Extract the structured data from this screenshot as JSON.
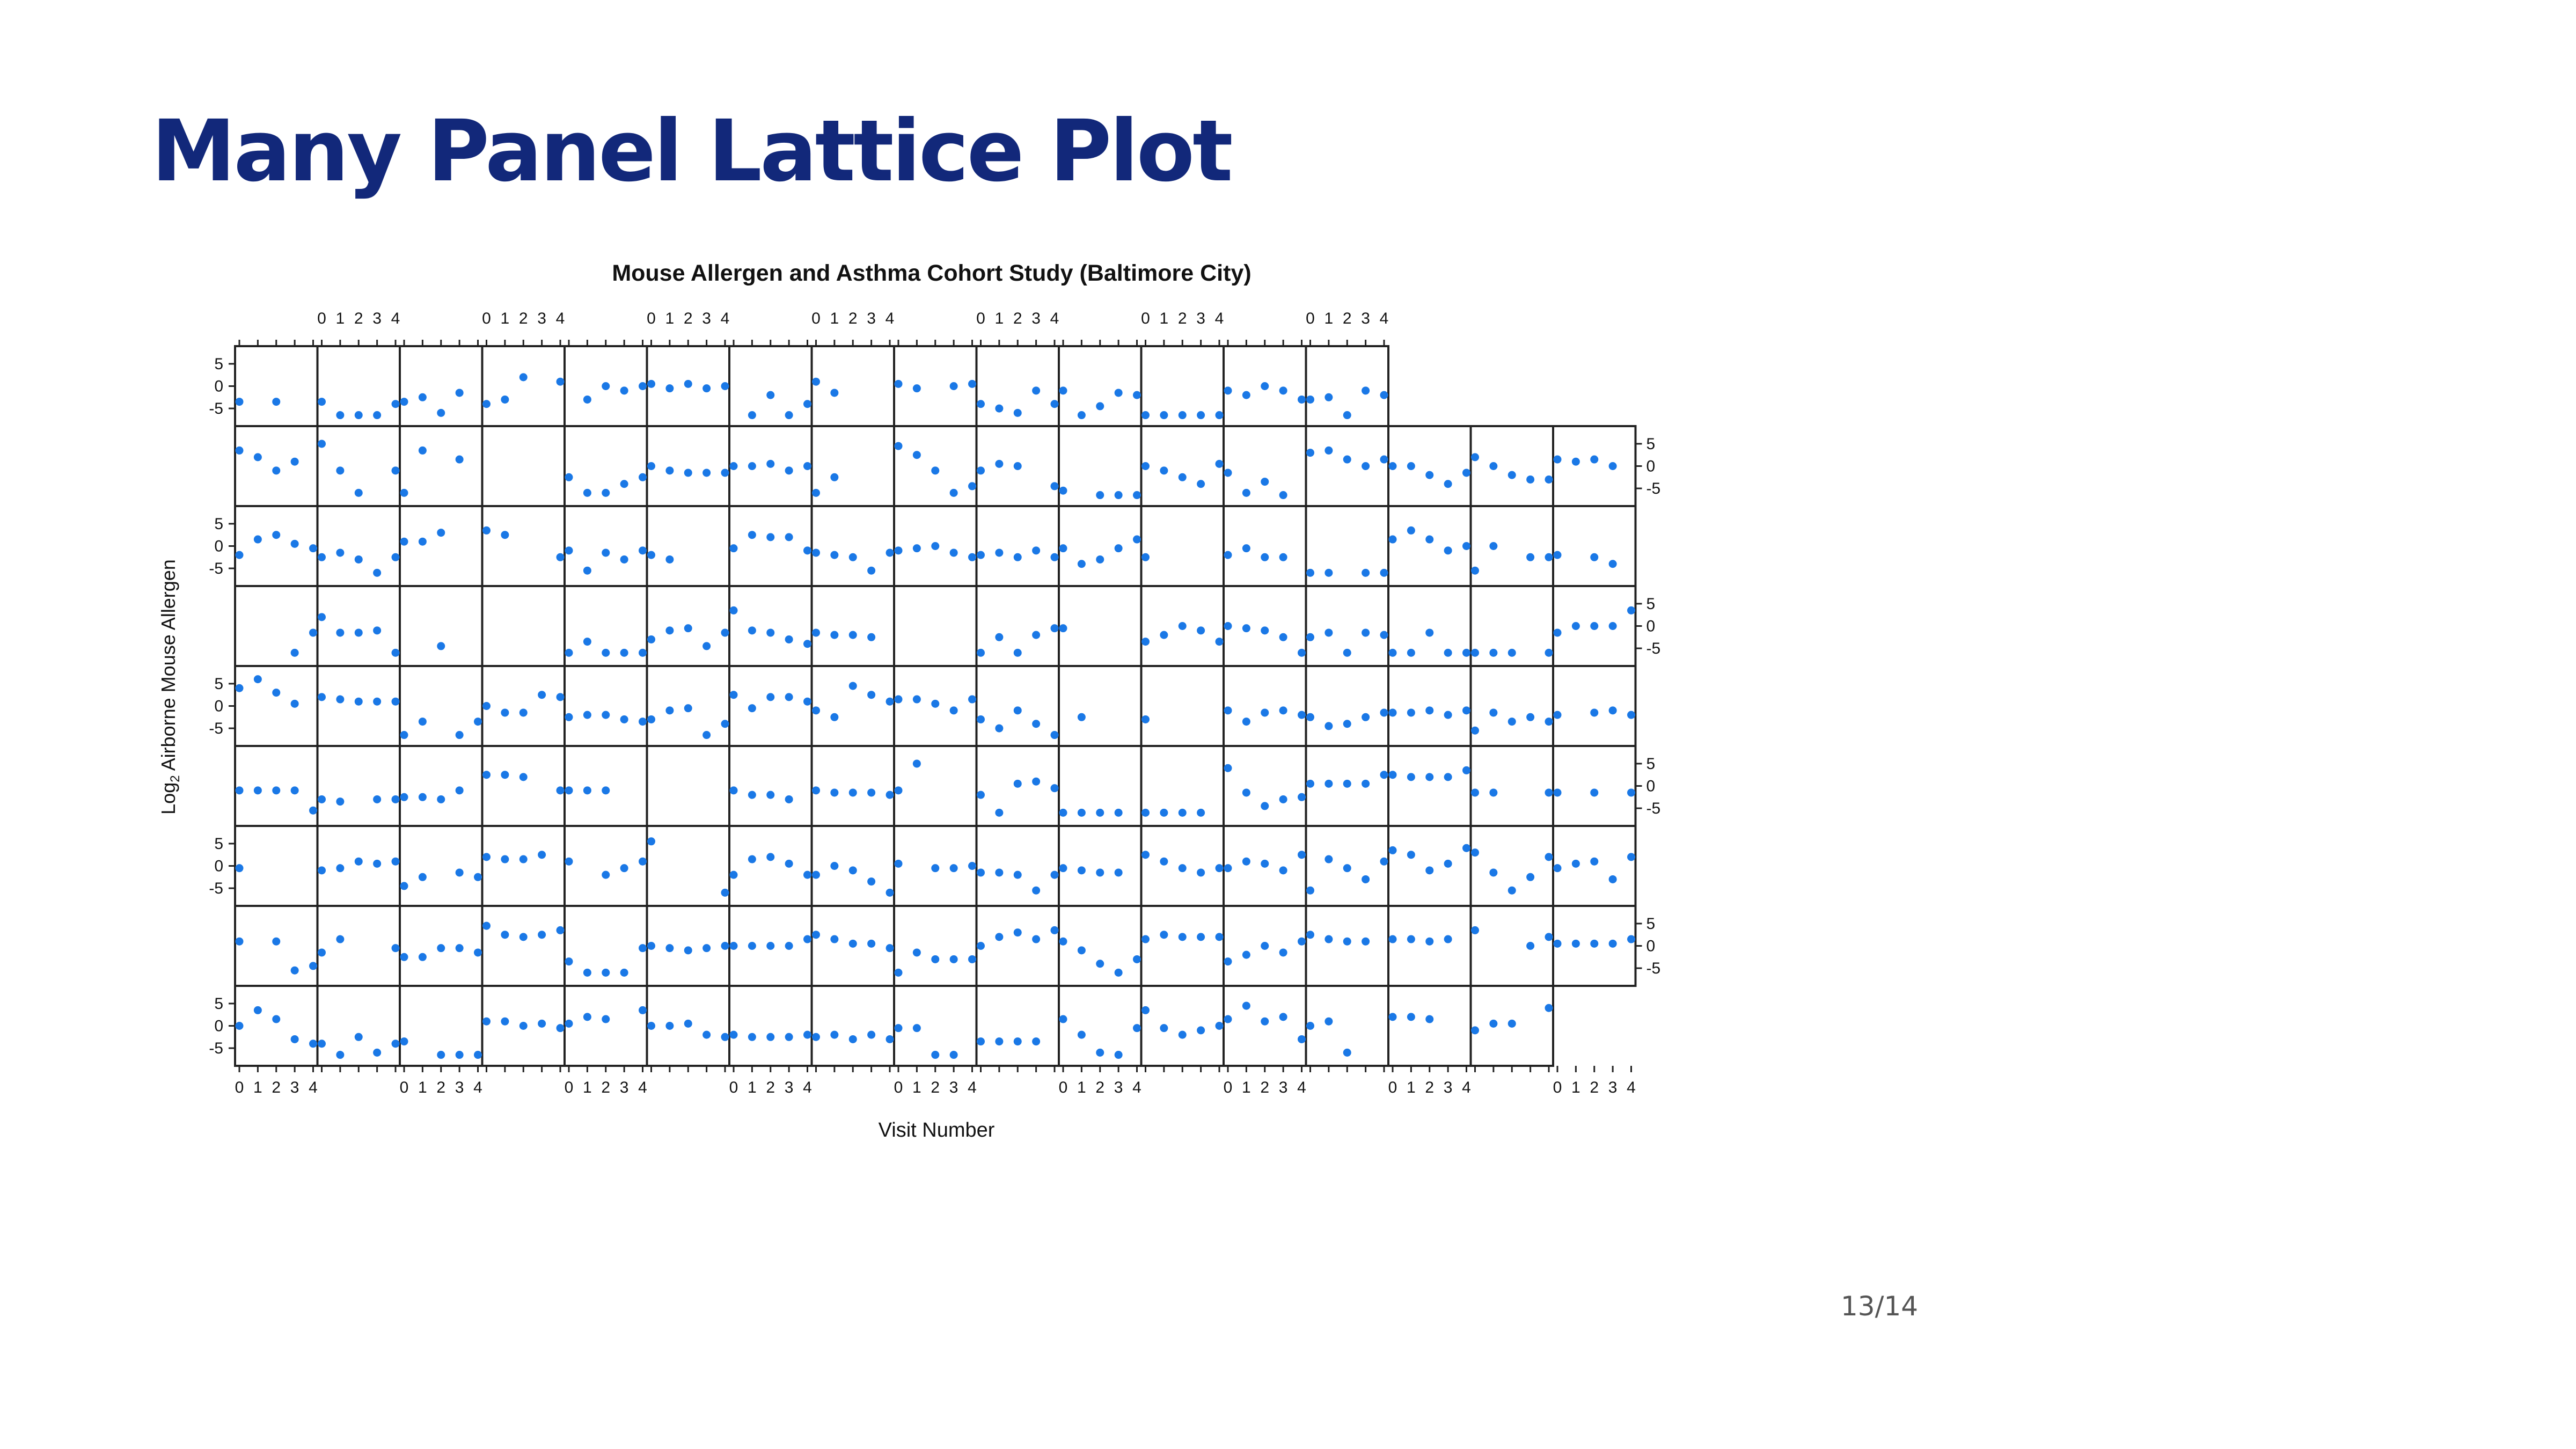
{
  "slide": {
    "title": "Many Panel Lattice Plot",
    "page_number": "13/14"
  },
  "colors": {
    "title": "#12287a",
    "points": "#1a78e6",
    "panel_border": "#222222",
    "tick_text": "#111111"
  },
  "chart_data": {
    "type": "scatter",
    "layout": "lattice",
    "title": "Mouse Allergen and Asthma Cohort Study (Baltimore City)",
    "xlabel": "Visit Number",
    "ylabel": "Log2 Airborne Mouse Allergen",
    "ylabel_parts": {
      "base": "Log",
      "sub": "2",
      "rest": " Airborne Mouse Allergen"
    },
    "x": [
      0,
      1,
      2,
      3,
      4
    ],
    "x_ticks": [
      "0",
      "1",
      "2",
      "3",
      "4"
    ],
    "y_ticks": [
      "5",
      "0",
      "-5"
    ],
    "y_tick_values": [
      5,
      0,
      -5
    ],
    "xlim": [
      0,
      4
    ],
    "ylim": [
      -8,
      8
    ],
    "grid": false,
    "panel_rows": 9,
    "panel_cols": 17,
    "panels": [
      [
        [
          -3.5,
          null,
          -3.5,
          null,
          null
        ],
        [
          -3.5,
          -6.5,
          -6.5,
          -6.5,
          -4
        ],
        [
          -3.5,
          -2.5,
          -6,
          -1.5,
          null
        ],
        [
          -4,
          -3,
          2,
          null,
          1
        ],
        [
          null,
          -3,
          0,
          -1,
          0
        ],
        [
          0.5,
          -0.5,
          0.5,
          -0.5,
          0
        ],
        [
          null,
          -6.5,
          -2,
          -6.5,
          -4
        ],
        [
          1,
          -1.5,
          null,
          null,
          null
        ],
        [
          0.5,
          -0.5,
          null,
          0,
          0.5
        ],
        [
          -4,
          -5,
          -6,
          -1,
          -4
        ],
        [
          -1,
          -6.5,
          -4.5,
          -1.5,
          -2
        ],
        [
          -6.5,
          -6.5,
          -6.5,
          -6.5,
          -6.5
        ],
        [
          -1,
          -2,
          0,
          -1,
          -3
        ],
        [
          -3,
          -2.5,
          -6.5,
          -1,
          -2
        ],
        null,
        null,
        null
      ],
      [
        [
          3.5,
          2,
          -1,
          1,
          null
        ],
        [
          5,
          -1,
          -6,
          null,
          -1
        ],
        [
          -6,
          3.5,
          null,
          1.5,
          null
        ],
        null,
        [
          -2.5,
          -6,
          -6,
          -4,
          -2.5
        ],
        [
          0,
          -1,
          -1.5,
          -1.5,
          -1.5
        ],
        [
          0,
          0,
          0.5,
          -1,
          0
        ],
        [
          -6,
          -2.5,
          null,
          null,
          null
        ],
        [
          4.5,
          2.5,
          -1,
          -6,
          -4.5
        ],
        [
          -1,
          0.5,
          0,
          null,
          -4.5
        ],
        [
          -5.5,
          null,
          -6.5,
          -6.5,
          -6.5
        ],
        [
          0,
          -1,
          -2.5,
          -4,
          0.5
        ],
        [
          -1.5,
          -6,
          -3.5,
          -6.5,
          null
        ],
        [
          3,
          3.5,
          1.5,
          0,
          1.5
        ],
        [
          0,
          0,
          -2,
          -4,
          -1.5
        ],
        [
          2,
          0,
          -2,
          -3,
          -3
        ],
        [
          1.5,
          1,
          1.5,
          0,
          null
        ]
      ],
      [
        [
          -2,
          1.5,
          2.5,
          0.5,
          -0.5
        ],
        [
          -2.5,
          -1.5,
          -3,
          -6,
          -2.5
        ],
        [
          1,
          1,
          3,
          null,
          null
        ],
        [
          3.5,
          2.5,
          null,
          null,
          -2.5
        ],
        [
          -1,
          -5.5,
          -1.5,
          -3,
          -1
        ],
        [
          -2,
          -3,
          null,
          null,
          null
        ],
        [
          -0.5,
          2.5,
          2,
          2,
          -1
        ],
        [
          -1.5,
          -2,
          -2.5,
          -5.5,
          -1.5
        ],
        [
          -1,
          -0.5,
          0,
          -1.5,
          -2.5
        ],
        [
          -2,
          -1.5,
          -2.5,
          -1,
          -2.5
        ],
        [
          -0.5,
          -4,
          -3,
          -0.5,
          1.5
        ],
        [
          -2.5,
          null,
          null,
          null,
          null
        ],
        [
          -2,
          -0.5,
          -2.5,
          -2.5,
          null
        ],
        [
          -6,
          -6,
          null,
          -6,
          -6
        ],
        [
          1.5,
          3.5,
          1.5,
          -1,
          0
        ],
        [
          -5.5,
          0,
          null,
          -2.5,
          -2.5
        ],
        [
          -2,
          null,
          -2.5,
          -4,
          null
        ]
      ],
      [
        [
          null,
          null,
          null,
          -6,
          -1.5
        ],
        [
          2,
          -1.5,
          -1.5,
          -1,
          -6
        ],
        [
          null,
          null,
          -4.5,
          null,
          null
        ],
        null,
        [
          -6,
          -3.5,
          -6,
          -6,
          -6
        ],
        [
          -3,
          -1,
          -0.5,
          -4.5,
          -1.5
        ],
        [
          3.5,
          -1,
          -1.5,
          -3,
          -4
        ],
        [
          -1.5,
          -2,
          -2,
          -2.5,
          null
        ],
        [
          null,
          null,
          null,
          null,
          null
        ],
        [
          -6,
          -2.5,
          -6,
          -2,
          -0.5
        ],
        [
          -0.5,
          null,
          null,
          null,
          null
        ],
        [
          -3.5,
          -2,
          0,
          -1,
          -3.5
        ],
        [
          0,
          -0.5,
          -1,
          -2.5,
          -6
        ],
        [
          -2.5,
          -1.5,
          -6,
          -1.5,
          -2
        ],
        [
          -6,
          -6,
          -1.5,
          -6,
          -6
        ],
        [
          -6,
          -6,
          -6,
          null,
          -6
        ],
        [
          -1.5,
          0,
          0,
          0,
          3.5
        ]
      ],
      [
        [
          4,
          6,
          3,
          0.5,
          null
        ],
        [
          2,
          1.5,
          1,
          1,
          1
        ],
        [
          -6.5,
          -3.5,
          null,
          -6.5,
          -3.5
        ],
        [
          0,
          -1.5,
          -1.5,
          2.5,
          2
        ],
        [
          -2.5,
          -2,
          -2,
          -3,
          -3.5
        ],
        [
          -3,
          -1,
          -0.5,
          -6.5,
          -4
        ],
        [
          2.5,
          -0.5,
          2,
          2,
          1
        ],
        [
          -1,
          -2.5,
          4.5,
          2.5,
          1
        ],
        [
          1.5,
          1.5,
          0.5,
          -1,
          1.5
        ],
        [
          -3,
          -5,
          -1,
          -4,
          -6.5
        ],
        [
          null,
          -2.5,
          null,
          null,
          null
        ],
        [
          -3,
          null,
          null,
          null,
          null
        ],
        [
          -1,
          -3.5,
          -1.5,
          -1,
          -2
        ],
        [
          -2.5,
          -4.5,
          -4,
          -2.5,
          -1.5
        ],
        [
          -1.5,
          -1.5,
          -1,
          -2,
          -1
        ],
        [
          -5.5,
          -1.5,
          -3.5,
          -2.5,
          -3.5
        ],
        [
          -2,
          null,
          -1.5,
          -1,
          -2
        ]
      ],
      [
        [
          -1,
          -1,
          -1,
          -1,
          -5.5
        ],
        [
          -3,
          -3.5,
          null,
          -3,
          -3
        ],
        [
          -2.5,
          -2.5,
          -3,
          -1,
          null
        ],
        [
          2.5,
          2.5,
          2,
          null,
          -1
        ],
        [
          -1,
          -1,
          -1,
          null,
          null
        ],
        null,
        [
          -1,
          -2,
          -2,
          -3,
          null
        ],
        [
          -1,
          -1.5,
          -1.5,
          -1.5,
          -2
        ],
        [
          -1,
          5,
          null,
          null,
          null
        ],
        [
          -2,
          -6,
          0.5,
          1,
          -0.5
        ],
        [
          -6,
          -6,
          -6,
          -6,
          null
        ],
        [
          -6,
          -6,
          -6,
          -6,
          null
        ],
        [
          4,
          -1.5,
          -4.5,
          -3,
          -2.5
        ],
        [
          0.5,
          0.5,
          0.5,
          0.5,
          2.5
        ],
        [
          2.5,
          2,
          2,
          2,
          3.5
        ],
        [
          -1.5,
          -1.5,
          null,
          null,
          -1.5
        ],
        [
          -1.5,
          null,
          -1.5,
          null,
          -1.5
        ]
      ],
      [
        [
          -0.5,
          null,
          null,
          null,
          null
        ],
        [
          -1,
          -0.5,
          1,
          0.5,
          1
        ],
        [
          -4.5,
          -2.5,
          null,
          -1.5,
          -2.5
        ],
        [
          2,
          1.5,
          1.5,
          2.5,
          null
        ],
        [
          1,
          null,
          -2,
          -0.5,
          1
        ],
        [
          5.5,
          null,
          null,
          null,
          -6
        ],
        [
          -2,
          1.5,
          2,
          0.5,
          -2
        ],
        [
          -2,
          0,
          -1,
          -3.5,
          -6
        ],
        [
          0.5,
          null,
          -0.5,
          -0.5,
          0
        ],
        [
          -1.5,
          -1.5,
          -2,
          -5.5,
          -2
        ],
        [
          -0.5,
          -1,
          -1.5,
          -1.5,
          null
        ],
        [
          2.5,
          1,
          -0.5,
          -1.5,
          -0.5
        ],
        [
          -0.5,
          1,
          0.5,
          -1,
          2.5
        ],
        [
          -5.5,
          1.5,
          -0.5,
          -3,
          1
        ],
        [
          3.5,
          2.5,
          -1,
          0.5,
          4
        ],
        [
          3,
          -1.5,
          -5.5,
          -2.5,
          2
        ],
        [
          -0.5,
          0.5,
          1,
          -3,
          2
        ]
      ],
      [
        [
          1,
          null,
          1,
          -5.5,
          -4.5
        ],
        [
          -1.5,
          1.5,
          null,
          null,
          -0.5
        ],
        [
          -2.5,
          -2.5,
          -0.5,
          -0.5,
          -1.5
        ],
        [
          4.5,
          2.5,
          2,
          2.5,
          3.5
        ],
        [
          -3.5,
          -6,
          -6,
          -6,
          -0.5
        ],
        [
          0,
          -0.5,
          -1,
          -0.5,
          0
        ],
        [
          0,
          0,
          0,
          0,
          1.5
        ],
        [
          2.5,
          1.5,
          0.5,
          0.5,
          -0.5
        ],
        [
          -6,
          -1.5,
          -3,
          -3,
          -3
        ],
        [
          0,
          2,
          3,
          1.5,
          3.5
        ],
        [
          1,
          -1,
          -4,
          -6,
          -3
        ],
        [
          1.5,
          2.5,
          2,
          2,
          2
        ],
        [
          -3.5,
          -2,
          0,
          -1.5,
          1
        ],
        [
          2.5,
          1.5,
          1,
          1,
          null
        ],
        [
          1.5,
          1.5,
          1,
          1.5,
          null
        ],
        [
          3.5,
          null,
          null,
          0,
          2
        ],
        [
          0.5,
          0.5,
          0.5,
          0.5,
          1.5
        ]
      ],
      [
        [
          0,
          3.5,
          1.5,
          -3,
          -4
        ],
        [
          -4,
          -6.5,
          -2.5,
          -6,
          -4
        ],
        [
          -3.5,
          null,
          -6.5,
          -6.5,
          -6.5
        ],
        [
          1,
          1,
          0,
          0.5,
          -0.5
        ],
        [
          0.5,
          2,
          1.5,
          null,
          3.5
        ],
        [
          0,
          0,
          0.5,
          -2,
          -2.5
        ],
        [
          -2,
          -2.5,
          -2.5,
          -2.5,
          -2
        ],
        [
          -2.5,
          -2,
          -3,
          -2,
          -3
        ],
        [
          -0.5,
          -0.5,
          -6.5,
          -6.5,
          null
        ],
        [
          -3.5,
          -3.5,
          -3.5,
          -3.5,
          null
        ],
        [
          1.5,
          -2,
          -6,
          -6.5,
          -0.5
        ],
        [
          3.5,
          -0.5,
          -2,
          -1,
          0
        ],
        [
          1.5,
          4.5,
          1,
          2,
          -3
        ],
        [
          0,
          1,
          -6,
          null,
          null
        ],
        [
          2,
          2,
          1.5,
          null,
          null
        ],
        [
          -1,
          0.5,
          0.5,
          null,
          4
        ]
      ]
    ]
  }
}
